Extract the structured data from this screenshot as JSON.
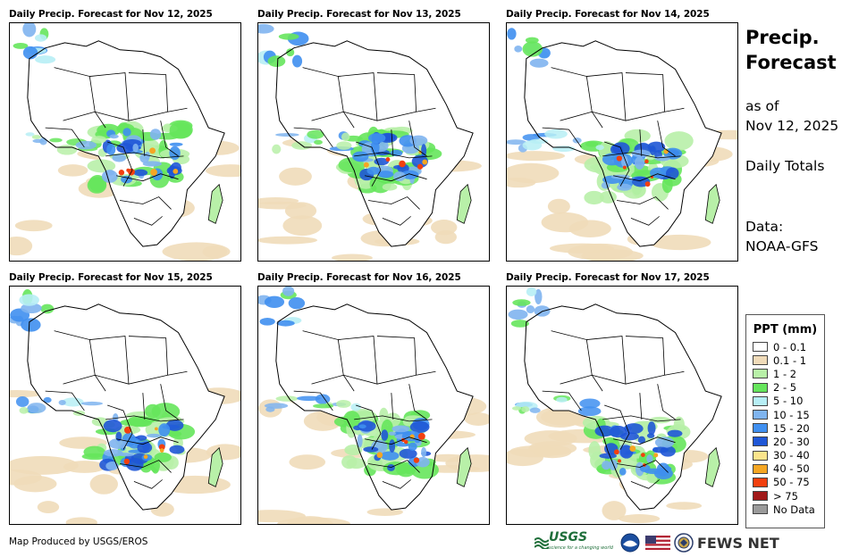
{
  "panels": [
    {
      "title": "Daily Precip. Forecast for Nov 12, 2025"
    },
    {
      "title": "Daily Precip. Forecast for Nov 13, 2025"
    },
    {
      "title": "Daily Precip. Forecast for Nov 14, 2025"
    },
    {
      "title": "Daily Precip. Forecast for Nov 15, 2025"
    },
    {
      "title": "Daily Precip. Forecast for Nov 16, 2025"
    },
    {
      "title": "Daily Precip. Forecast for Nov 17, 2025"
    }
  ],
  "side": {
    "title_line1": "Precip.",
    "title_line2": "Forecast",
    "asof_line1": "as of",
    "asof_line2": "Nov 12, 2025",
    "totals": "Daily Totals",
    "data_line1": "Data:",
    "data_line2": "NOAA-GFS"
  },
  "legend": {
    "title": "PPT (mm)",
    "items": [
      {
        "label": "0 - 0.1",
        "color": "#ffffff"
      },
      {
        "label": "0.1 - 1",
        "color": "#f0dbb9"
      },
      {
        "label": "1 - 2",
        "color": "#b8f0a8"
      },
      {
        "label": "2 - 5",
        "color": "#66e55c"
      },
      {
        "label": "5 - 10",
        "color": "#b7eef5"
      },
      {
        "label": "10 - 15",
        "color": "#7fb4ef"
      },
      {
        "label": "15 - 20",
        "color": "#3f8ff0"
      },
      {
        "label": "20 - 30",
        "color": "#1f57d6"
      },
      {
        "label": "30 - 40",
        "color": "#fbe48c"
      },
      {
        "label": "40 - 50",
        "color": "#f5a623"
      },
      {
        "label": "50 - 75",
        "color": "#f2400f"
      },
      {
        "label": "> 75",
        "color": "#a01818"
      },
      {
        "label": "No Data",
        "color": "#9a9a9a"
      }
    ]
  },
  "footer": {
    "produced_by": "Map Produced by USGS/EROS",
    "usgs": "USGS",
    "usgs_tagline": "science for a changing world",
    "fews": "FEWS NET"
  }
}
